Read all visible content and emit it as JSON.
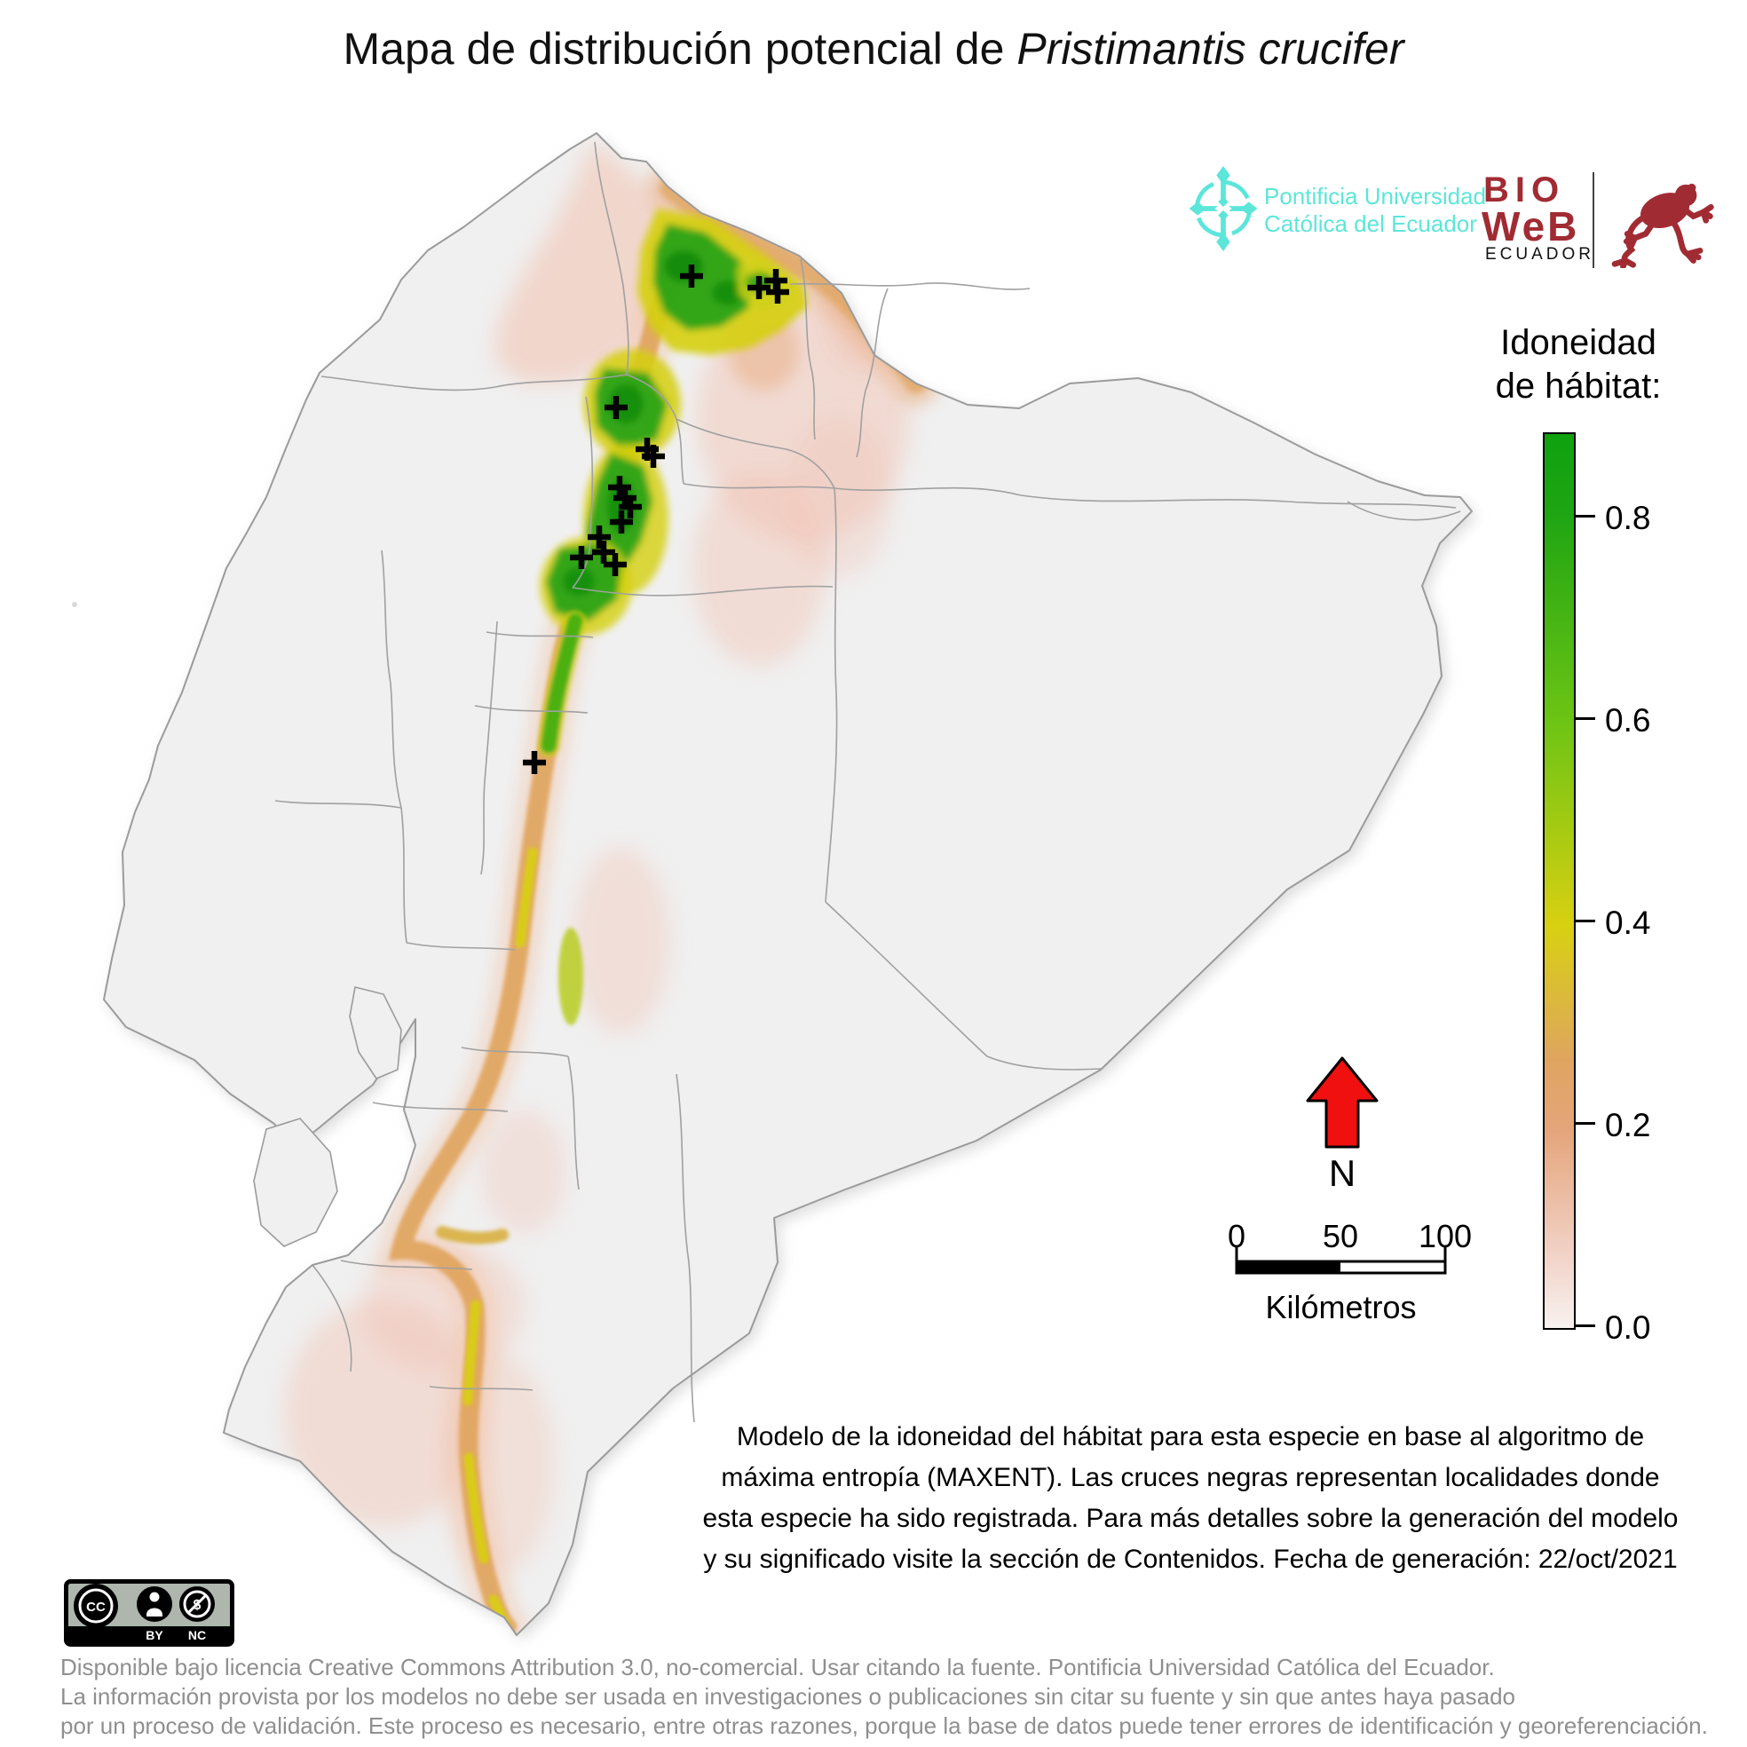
{
  "title": {
    "prefix": "Mapa de distribución potencial de ",
    "species": "Pristimantis crucifer"
  },
  "logos": {
    "puce": {
      "line1": "Pontificia Universidad",
      "line2": "Católica del Ecuador",
      "color": "#5CE6DA"
    },
    "bioweb": {
      "line1": "BIO",
      "line2": "WeB",
      "line3": "ECUADOR",
      "color": "#A12B33"
    }
  },
  "legend": {
    "title_line1": "Idoneidad",
    "title_line2": "de hábitat:",
    "ticks": [
      "0.8",
      "0.6",
      "0.4",
      "0.2",
      "0.0"
    ],
    "gradient": [
      "#0FA10F 0%",
      "#1FA513 9%",
      "#6CC414 32%",
      "#D8D011 55%",
      "#DFA55F 70%",
      "#E5A57B 78%",
      "#F2D3C8 92%",
      "#F8F2F0 100%"
    ]
  },
  "north_arrow": {
    "label": "N",
    "color": "#F01010"
  },
  "scalebar": {
    "tick0": "0",
    "tick50": "50",
    "tick100": "100",
    "unit": "Kilómetros"
  },
  "description": {
    "line1": "Modelo de la idoneidad del hábitat para esta especie en base al algoritmo de",
    "line2": "máxima entropía (MAXENT). Las cruces negras representan localidades donde",
    "line3": "esta especie ha sido registrada. Para más detalles sobre la generación del modelo",
    "line4": "y su significado visite la sección de Contenidos. Fecha de generación: 22/oct/2021"
  },
  "license_badge": {
    "cc": "CC",
    "by": "BY",
    "nc": "NC"
  },
  "footer": {
    "line1": "Disponible bajo licencia Creative Commons Attribution 3.0, no-comercial. Usar citando la fuente. Pontificia Universidad Católica del Ecuador.",
    "line2": "La información provista por los modelos no debe ser usada en investigaciones o publicaciones sin citar su fuente y sin que antes haya pasado",
    "line3": "por un proceso de validación. Este proceso es necesario, entre otras razones, porque la base de datos puede tener errores de identificación y georeferenciación."
  },
  "map": {
    "region": "Ecuador",
    "suitability_colors": {
      "high": "#2BA315",
      "medium": "#D8D011",
      "low": "#DFA055",
      "very_low": "#F2C4B4",
      "land": "#F0F0F0",
      "border": "#9B9B9B"
    },
    "occurrences": [
      [
        779,
        311
      ],
      [
        855,
        324
      ],
      [
        874,
        316
      ],
      [
        876,
        329
      ],
      [
        694,
        459
      ],
      [
        729,
        506
      ],
      [
        736,
        514
      ],
      [
        698,
        549
      ],
      [
        704,
        561
      ],
      [
        710,
        571
      ],
      [
        700,
        588
      ],
      [
        675,
        605
      ],
      [
        655,
        628
      ],
      [
        680,
        622
      ],
      [
        693,
        636
      ],
      [
        602,
        859
      ]
    ]
  }
}
